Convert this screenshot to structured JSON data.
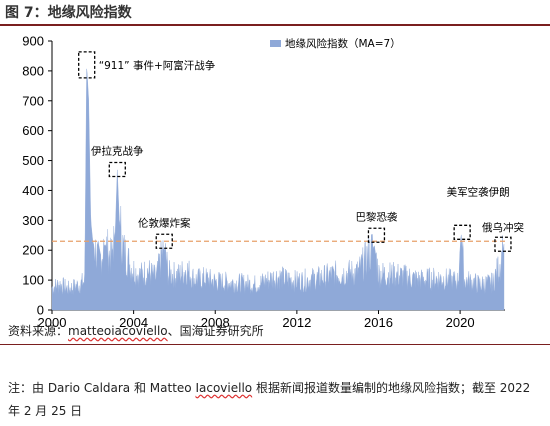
{
  "figure": {
    "title": "图 7：地缘风险指数",
    "source_prefix": "资料来源：",
    "source_author": "matteoiacoviello",
    "source_suffix": "、国海证券研究所",
    "note_line1_a": "注：由 Dario Caldara 和 Matteo ",
    "note_line1_b": "Iacoviello",
    "note_line1_c": " 根据新闻报道数量编制的地缘风险指数；截至 2022",
    "note_line2": "年 2 月 25 日"
  },
  "chart_data": {
    "type": "area",
    "legend": "地缘风险指数（MA=7）",
    "legend_position": "top-right",
    "xlim": [
      2000,
      2022.2
    ],
    "ylim": [
      0,
      900
    ],
    "x_ticks": [
      "2000",
      "2004",
      "2008",
      "2012",
      "2016",
      "2020"
    ],
    "x_tick_values": [
      2000,
      2004,
      2008,
      2012,
      2016,
      2020
    ],
    "y_ticks": [
      "0",
      "100",
      "200",
      "300",
      "400",
      "500",
      "600",
      "700",
      "800",
      "900"
    ],
    "y_tick_values": [
      0,
      100,
      200,
      300,
      400,
      500,
      600,
      700,
      800,
      900
    ],
    "reference_line": {
      "y": 230,
      "style": "dashed",
      "color": "#e8a06a"
    },
    "series": [
      {
        "color": "#8fa9d8",
        "points": [
          [
            2000.0,
            75
          ],
          [
            2000.4,
            85
          ],
          [
            2000.8,
            70
          ],
          [
            2001.2,
            80
          ],
          [
            2001.6,
            95
          ],
          [
            2001.7,
            820
          ],
          [
            2001.8,
            700
          ],
          [
            2001.9,
            300
          ],
          [
            2002.0,
            230
          ],
          [
            2002.3,
            160
          ],
          [
            2002.6,
            220
          ],
          [
            2002.9,
            170
          ],
          [
            2003.1,
            260
          ],
          [
            2003.2,
            470
          ],
          [
            2003.3,
            300
          ],
          [
            2003.5,
            200
          ],
          [
            2003.9,
            140
          ],
          [
            2004.3,
            115
          ],
          [
            2004.7,
            130
          ],
          [
            2005.1,
            105
          ],
          [
            2005.5,
            210
          ],
          [
            2005.7,
            120
          ],
          [
            2006.2,
            115
          ],
          [
            2006.6,
            135
          ],
          [
            2007.0,
            100
          ],
          [
            2007.5,
            105
          ],
          [
            2008.0,
            95
          ],
          [
            2009.0,
            90
          ],
          [
            2010.0,
            85
          ],
          [
            2011.0,
            110
          ],
          [
            2012.0,
            95
          ],
          [
            2013.0,
            105
          ],
          [
            2014.0,
            120
          ],
          [
            2015.0,
            125
          ],
          [
            2015.8,
            215
          ],
          [
            2016.0,
            120
          ],
          [
            2017.0,
            115
          ],
          [
            2018.0,
            100
          ],
          [
            2019.0,
            105
          ],
          [
            2019.9,
            95
          ],
          [
            2020.05,
            260
          ],
          [
            2020.2,
            100
          ],
          [
            2021.0,
            85
          ],
          [
            2021.6,
            90
          ],
          [
            2022.0,
            160
          ],
          [
            2022.15,
            220
          ]
        ]
      }
    ],
    "annotations": [
      {
        "label": "“911” 事件+阿富汗战争",
        "x": 2001.7,
        "y": 820
      },
      {
        "label": "伊拉克战争",
        "x": 2003.2,
        "y": 470
      },
      {
        "label": "伦敦爆炸案",
        "x": 2005.5,
        "y": 230
      },
      {
        "label": "巴黎恐袭",
        "x": 2015.9,
        "y": 250
      },
      {
        "label": "美军空袭伊朗",
        "x": 2020.1,
        "y": 260
      },
      {
        "label": "俄乌冲突",
        "x": 2022.1,
        "y": 220
      }
    ]
  }
}
